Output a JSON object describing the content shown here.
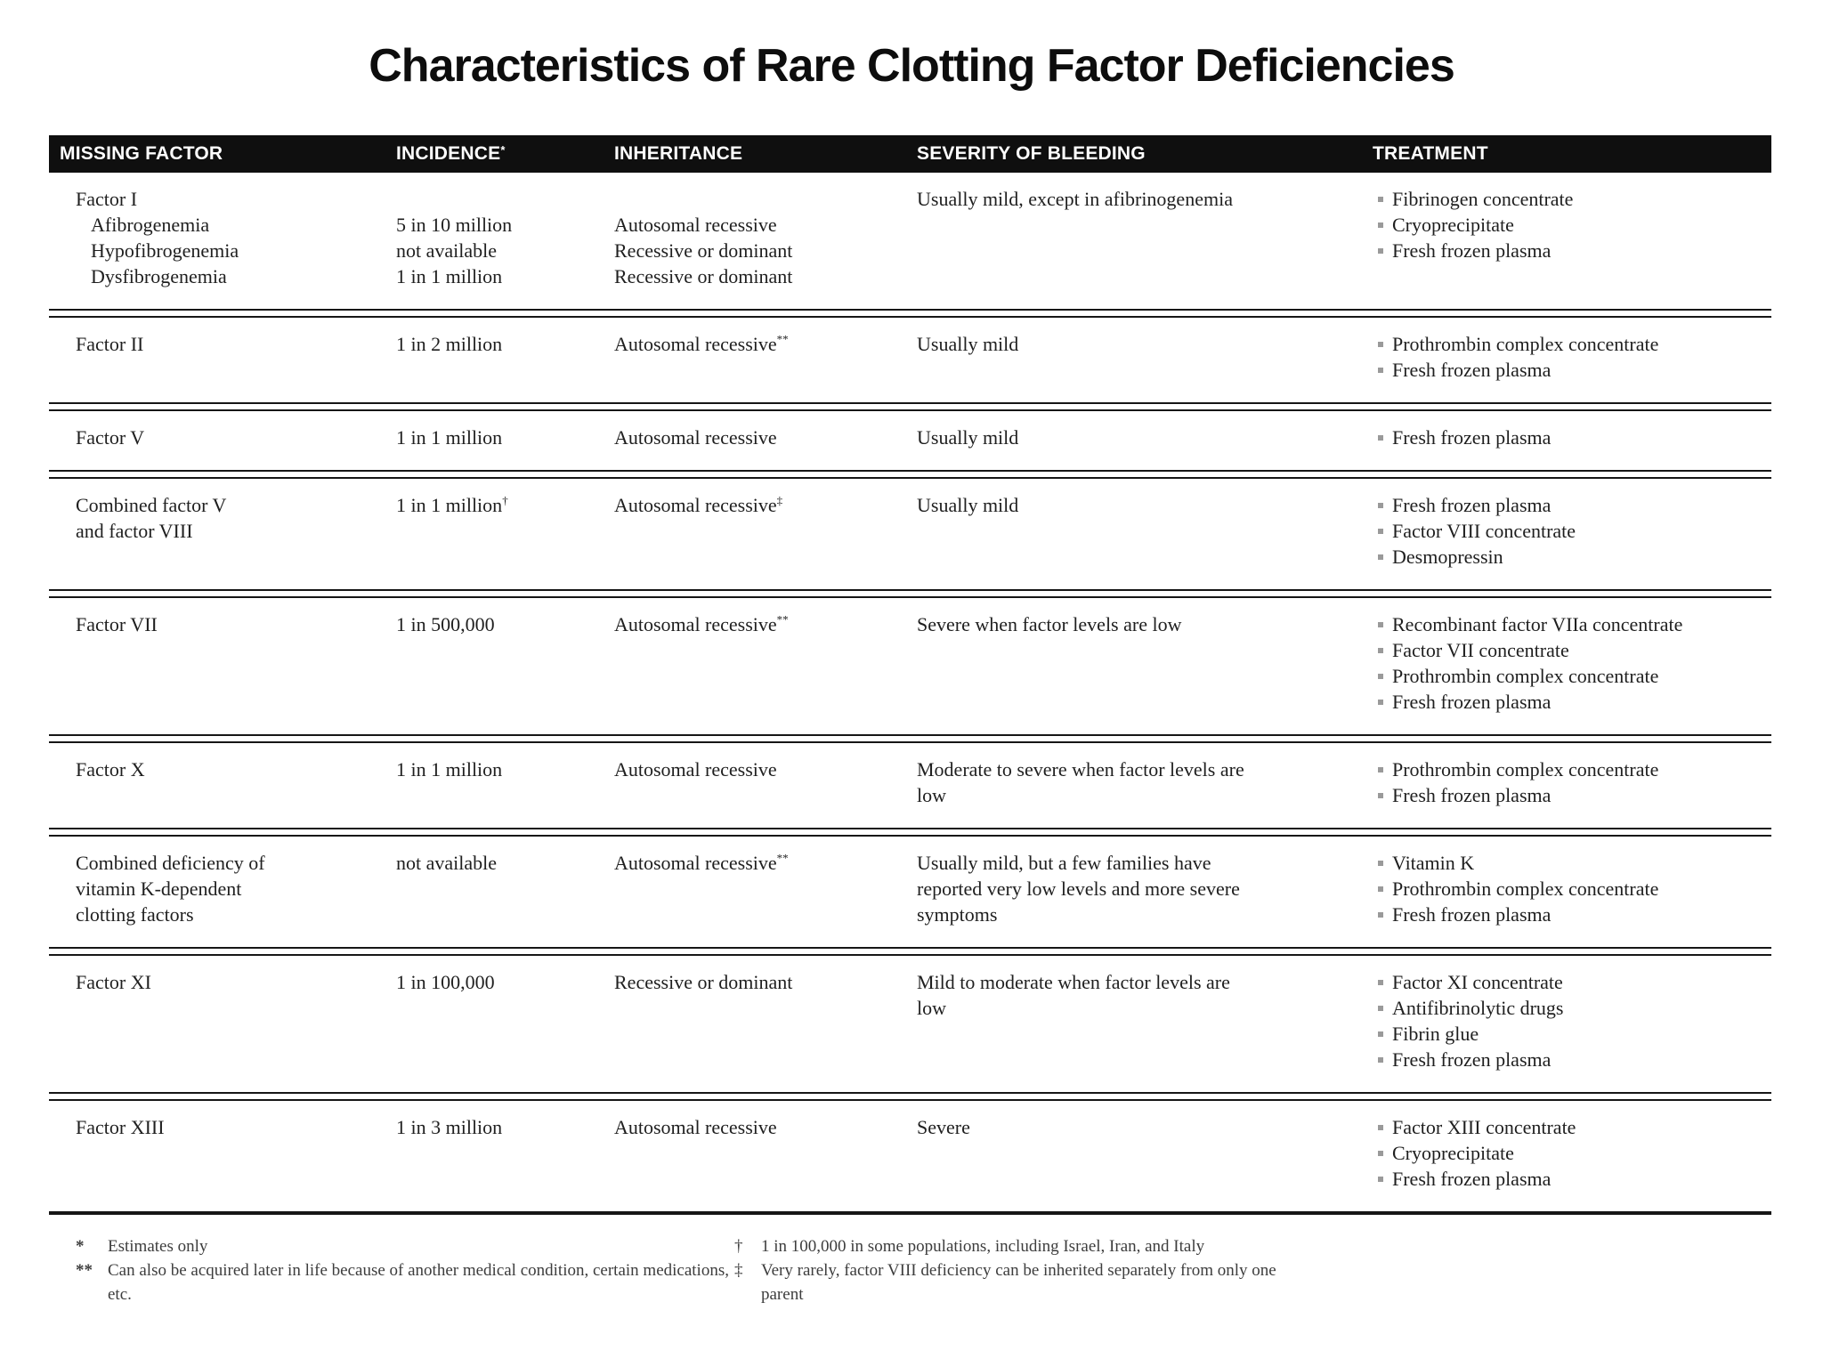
{
  "title": "Characteristics of Rare Clotting Factor Deficiencies",
  "table": {
    "columns": [
      {
        "label": "MISSING FACTOR"
      },
      {
        "label": "INCIDENCE",
        "sup": "*"
      },
      {
        "label": "INHERITANCE"
      },
      {
        "label": "SEVERITY OF BLEEDING"
      },
      {
        "label": "TREATMENT"
      }
    ],
    "rows": [
      {
        "factor": [
          {
            "text": "Factor I"
          },
          {
            "text": "Afibrogenemia",
            "indent": true
          },
          {
            "text": "Hypofibrogenemia",
            "indent": true
          },
          {
            "text": "Dysfibrogenemia",
            "indent": true
          }
        ],
        "incidence": [
          {
            "blank": true
          },
          {
            "text": "5 in 10 million"
          },
          {
            "text": "not available"
          },
          {
            "text": "1 in 1 million"
          }
        ],
        "inheritance": [
          {
            "blank": true
          },
          {
            "text": "Autosomal recessive"
          },
          {
            "text": "Recessive or dominant"
          },
          {
            "text": "Recessive or dominant"
          }
        ],
        "severity": "Usually mild, except in afibrinogenemia",
        "treatment": [
          "Fibrinogen concentrate",
          "Cryoprecipitate",
          "Fresh frozen plasma"
        ]
      },
      {
        "factor": [
          {
            "text": "Factor II"
          }
        ],
        "incidence": [
          {
            "text": "1 in 2 million"
          }
        ],
        "inheritance": [
          {
            "text": "Autosomal recessive",
            "sup": "**"
          }
        ],
        "severity": "Usually mild",
        "treatment": [
          "Prothrombin complex concentrate",
          "Fresh frozen plasma"
        ]
      },
      {
        "factor": [
          {
            "text": "Factor V"
          }
        ],
        "incidence": [
          {
            "text": "1 in 1 million"
          }
        ],
        "inheritance": [
          {
            "text": "Autosomal recessive"
          }
        ],
        "severity": "Usually mild",
        "treatment": [
          "Fresh frozen plasma"
        ]
      },
      {
        "factor": [
          {
            "text": "Combined factor V"
          },
          {
            "text": "and factor VIII"
          }
        ],
        "incidence": [
          {
            "text": "1 in 1 million",
            "sup": "†"
          }
        ],
        "inheritance": [
          {
            "text": "Autosomal recessive",
            "sup": "‡"
          }
        ],
        "severity": "Usually mild",
        "treatment": [
          "Fresh frozen plasma",
          "Factor VIII concentrate",
          "Desmopressin"
        ]
      },
      {
        "factor": [
          {
            "text": "Factor VII"
          }
        ],
        "incidence": [
          {
            "text": "1 in 500,000"
          }
        ],
        "inheritance": [
          {
            "text": "Autosomal recessive",
            "sup": "**"
          }
        ],
        "severity": "Severe when factor levels are low",
        "treatment": [
          "Recombinant factor VIIa concentrate",
          "Factor VII concentrate",
          "Prothrombin complex concentrate",
          "Fresh frozen plasma"
        ]
      },
      {
        "factor": [
          {
            "text": "Factor X"
          }
        ],
        "incidence": [
          {
            "text": "1 in 1 million"
          }
        ],
        "inheritance": [
          {
            "text": "Autosomal recessive"
          }
        ],
        "severity": "Moderate to severe when factor levels are low",
        "treatment": [
          "Prothrombin complex concentrate",
          "Fresh frozen plasma"
        ]
      },
      {
        "factor": [
          {
            "text": "Combined deficiency of"
          },
          {
            "text": "vitamin K-dependent"
          },
          {
            "text": "clotting factors"
          }
        ],
        "incidence": [
          {
            "text": "not available"
          }
        ],
        "inheritance": [
          {
            "text": "Autosomal recessive",
            "sup": "**"
          }
        ],
        "severity": "Usually mild, but a few families have reported very low levels and more severe symptoms",
        "treatment": [
          "Vitamin K",
          "Prothrombin complex concentrate",
          "Fresh frozen plasma"
        ]
      },
      {
        "factor": [
          {
            "text": "Factor XI"
          }
        ],
        "incidence": [
          {
            "text": "1 in 100,000"
          }
        ],
        "inheritance": [
          {
            "text": "Recessive or dominant"
          }
        ],
        "severity": "Mild to moderate when factor levels are low",
        "treatment": [
          "Factor XI concentrate",
          "Antifibrinolytic drugs",
          "Fibrin glue",
          "Fresh frozen plasma"
        ]
      },
      {
        "factor": [
          {
            "text": "Factor XIII"
          }
        ],
        "incidence": [
          {
            "text": "1 in 3 million"
          }
        ],
        "inheritance": [
          {
            "text": "Autosomal recessive"
          }
        ],
        "severity": "Severe",
        "treatment": [
          "Factor XIII concentrate",
          "Cryoprecipitate",
          "Fresh frozen plasma"
        ]
      }
    ]
  },
  "footnotes": {
    "left": [
      {
        "marker": "*",
        "text": "Estimates only"
      },
      {
        "marker": "**",
        "text": "Can also be acquired later in life because of another medical condition, certain medications, etc."
      }
    ],
    "right": [
      {
        "marker": "†",
        "text": "1 in 100,000 in some populations, including Israel, Iran, and Italy"
      },
      {
        "marker": "‡",
        "text": "Very rarely, factor VIII deficiency can be inherited separately from only one parent"
      }
    ]
  },
  "colors": {
    "header_bg": "#0f0f0f",
    "header_text": "#ffffff",
    "body_text": "#1f1f1f",
    "bullet": "#9a9a9a",
    "rule": "#161616"
  }
}
